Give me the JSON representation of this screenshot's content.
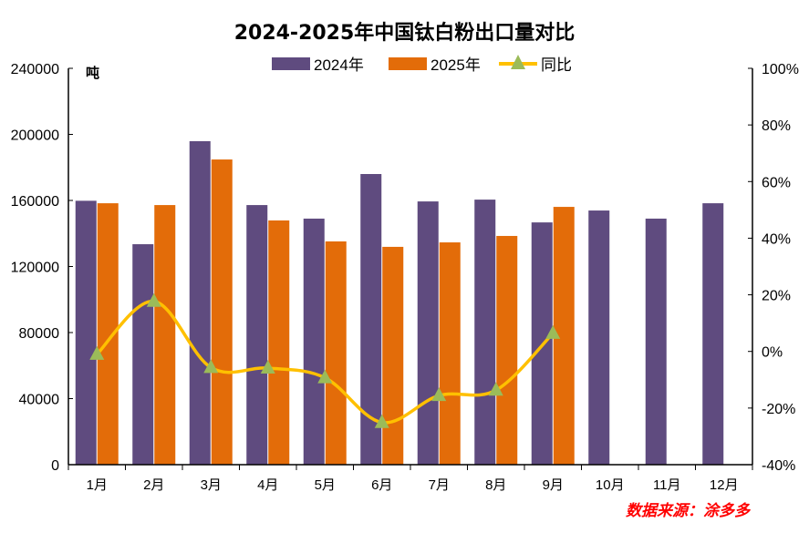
{
  "chart_data": {
    "type": "bar",
    "title": "2024-2025年中国钛白粉出口量对比",
    "categories": [
      "1月",
      "2月",
      "3月",
      "4月",
      "5月",
      "6月",
      "7月",
      "8月",
      "9月",
      "10月",
      "11月",
      "12月"
    ],
    "left_axis": {
      "unit_label": "吨",
      "ylim": [
        0,
        240000
      ],
      "ticks": [
        0,
        40000,
        80000,
        120000,
        160000,
        200000,
        240000
      ]
    },
    "right_axis": {
      "ylim": [
        -40,
        100
      ],
      "ticks": [
        "-40%",
        "-20%",
        "0%",
        "20%",
        "40%",
        "60%",
        "80%",
        "100%"
      ],
      "tick_values": [
        -40,
        -20,
        0,
        20,
        40,
        60,
        80,
        100
      ]
    },
    "series": [
      {
        "name": "2024年",
        "type": "bar",
        "axis": "left",
        "color": "#5f4b7f",
        "values": [
          159800,
          133500,
          195900,
          157200,
          149000,
          176000,
          159400,
          160500,
          146700,
          153900,
          149000,
          158300
        ]
      },
      {
        "name": "2025年",
        "type": "bar",
        "axis": "left",
        "color": "#e36c09",
        "values": [
          158300,
          157200,
          184800,
          147900,
          135200,
          131900,
          134600,
          138500,
          156100,
          null,
          null,
          null
        ]
      },
      {
        "name": "同比",
        "type": "line",
        "axis": "right",
        "color": "#ffc000",
        "marker_color": "#9bbb59",
        "marker": "triangle",
        "values": [
          -1.0,
          17.7,
          -5.7,
          -5.9,
          -9.3,
          -25.1,
          -15.6,
          -13.7,
          6.4,
          null,
          null,
          null
        ]
      }
    ],
    "legend_placement": "top-center",
    "grid": false
  },
  "source": "数据来源：涂多多"
}
